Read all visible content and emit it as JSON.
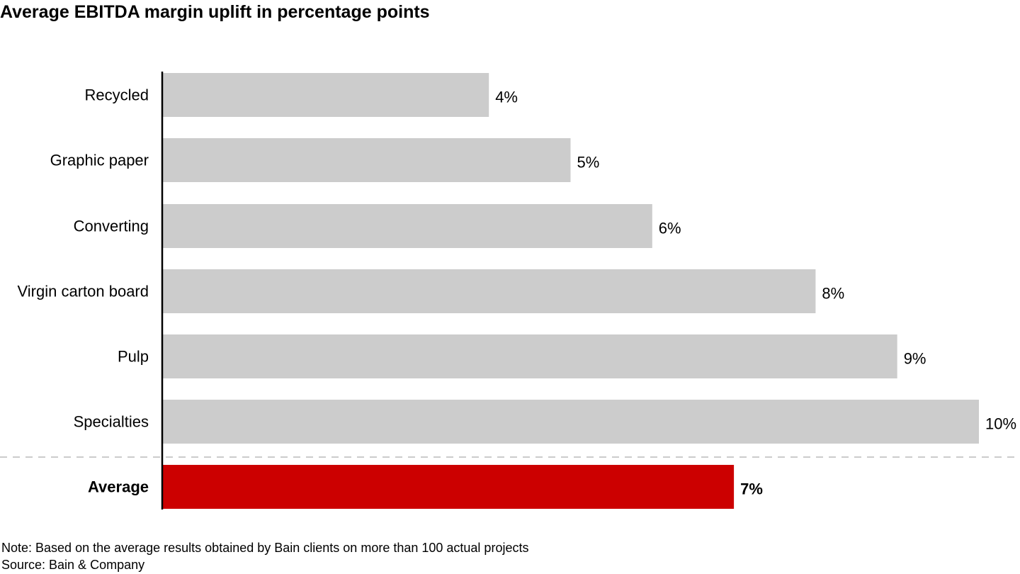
{
  "chart_data": {
    "type": "bar",
    "orientation": "horizontal",
    "title": "Average EBITDA margin uplift in percentage points",
    "categories": [
      "Recycled",
      "Graphic paper",
      "Converting",
      "Virgin carton board",
      "Pulp",
      "Specialties"
    ],
    "values": [
      4,
      5,
      6,
      8,
      9,
      10
    ],
    "value_labels": [
      "4%",
      "5%",
      "6%",
      "8%",
      "9%",
      "10%"
    ],
    "average": {
      "label": "Average",
      "value": 7,
      "value_label": "7%"
    },
    "xlim": [
      0,
      10
    ],
    "grid": false,
    "legend": "none",
    "colors": {
      "bar": "#cccccc",
      "average_bar": "#cc0000",
      "axis": "#000000",
      "separator": "#999999"
    }
  },
  "notes": {
    "note": "Note: Based on the average results obtained by Bain clients on more than 100 actual projects",
    "source": "Source: Bain & Company"
  }
}
